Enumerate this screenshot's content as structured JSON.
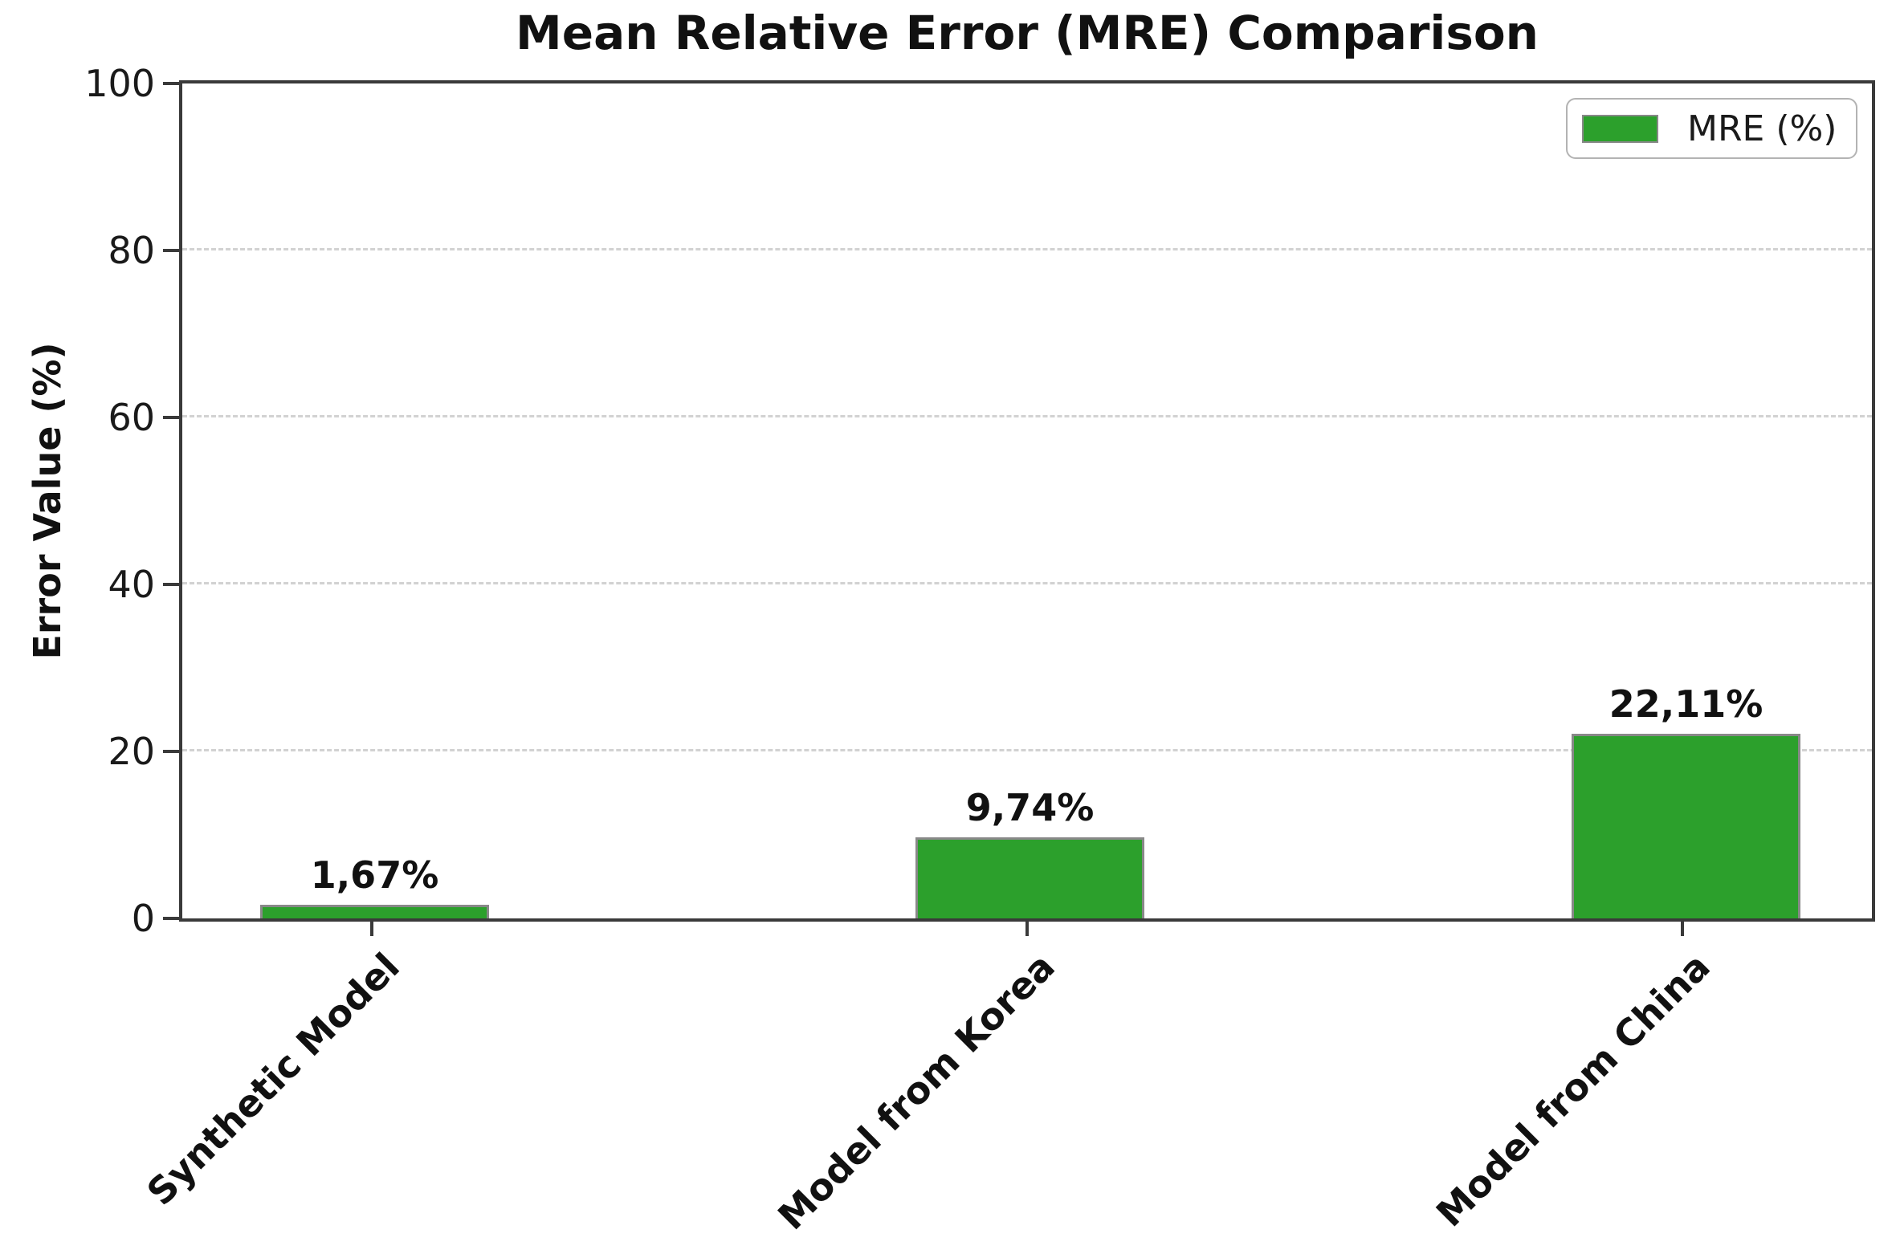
{
  "chart_data": {
    "type": "bar",
    "title": "Mean Relative Error (MRE) Comparison",
    "ylabel": "Error Value (%)",
    "xlabel": "",
    "categories": [
      "Synthetic Model",
      "Model from Korea",
      "Model from China"
    ],
    "series": [
      {
        "name": "MRE (%)",
        "values": [
          1.67,
          9.74,
          22.11
        ]
      }
    ],
    "value_labels": [
      "1,67%",
      "9,74%",
      "22,11%"
    ],
    "ylim": [
      0,
      100
    ],
    "yticks": [
      0,
      20,
      40,
      60,
      80,
      100
    ],
    "ytick_labels": [
      "0",
      "20",
      "40",
      "60",
      "80",
      "100"
    ],
    "grid": "horizontal-dashed",
    "legend": {
      "position": "upper-right",
      "label": "MRE (%)"
    },
    "colors": {
      "bar": "#2ca02c",
      "bar_edge": "#888888",
      "grid": "#d2d2d2",
      "spine": "#3a3a3a",
      "text": "#111111"
    }
  }
}
